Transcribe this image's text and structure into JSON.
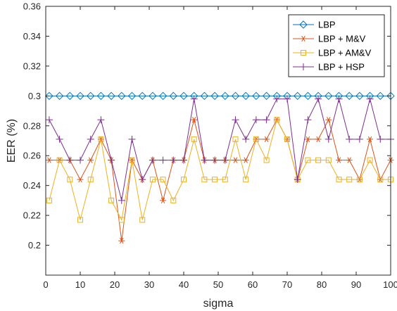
{
  "chart_data": {
    "type": "line",
    "xlabel": "sigma",
    "ylabel": "EER (%)",
    "xlim": [
      0,
      100
    ],
    "ylim": [
      0.18,
      0.36
    ],
    "xticks": [
      "0",
      "10",
      "20",
      "30",
      "40",
      "50",
      "60",
      "70",
      "80",
      "90",
      "100"
    ],
    "yticks": [
      "0.2",
      "0.22",
      "0.24",
      "0.26",
      "0.28",
      "0.3",
      "0.32",
      "0.34",
      "0.36"
    ],
    "grid": false,
    "legend_position": "top-right",
    "x": [
      1,
      4,
      7,
      10,
      13,
      16,
      19,
      22,
      25,
      28,
      31,
      34,
      37,
      40,
      43,
      46,
      49,
      52,
      55,
      58,
      61,
      64,
      67,
      70,
      73,
      76,
      79,
      82,
      85,
      88,
      91,
      94,
      97,
      100
    ],
    "series": [
      {
        "name": "LBP",
        "color": "#0072BD",
        "marker": "diamond",
        "values": [
          0.3,
          0.3,
          0.3,
          0.3,
          0.3,
          0.3,
          0.3,
          0.3,
          0.3,
          0.3,
          0.3,
          0.3,
          0.3,
          0.3,
          0.3,
          0.3,
          0.3,
          0.3,
          0.3,
          0.3,
          0.3,
          0.3,
          0.3,
          0.3,
          0.3,
          0.3,
          0.3,
          0.3,
          0.3,
          0.3,
          0.3,
          0.3,
          0.3,
          0.3
        ]
      },
      {
        "name": "LBP + M&V",
        "color": "#D95319",
        "marker": "asterisk",
        "values": [
          0.257,
          0.257,
          0.257,
          0.244,
          0.257,
          0.271,
          0.257,
          0.203,
          0.257,
          0.244,
          0.257,
          0.23,
          0.257,
          0.257,
          0.284,
          0.257,
          0.257,
          0.257,
          0.257,
          0.257,
          0.271,
          0.271,
          0.284,
          0.271,
          0.244,
          0.271,
          0.271,
          0.284,
          0.257,
          0.257,
          0.244,
          0.271,
          0.244,
          0.257
        ]
      },
      {
        "name": "LBP + AM&V",
        "color": "#EDB120",
        "marker": "square",
        "values": [
          0.23,
          0.257,
          0.244,
          0.217,
          0.244,
          0.271,
          0.23,
          0.217,
          0.257,
          0.217,
          0.244,
          0.244,
          0.23,
          0.244,
          0.271,
          0.244,
          0.244,
          0.244,
          0.271,
          0.244,
          0.271,
          0.257,
          0.284,
          0.271,
          0.244,
          0.257,
          0.257,
          0.257,
          0.244,
          0.244,
          0.244,
          0.257,
          0.244,
          0.244
        ]
      },
      {
        "name": "LBP + HSP",
        "color": "#7E2F8E",
        "marker": "plus",
        "values": [
          0.284,
          0.271,
          0.257,
          0.257,
          0.271,
          0.284,
          0.257,
          0.23,
          0.271,
          0.244,
          0.257,
          0.257,
          0.257,
          0.257,
          0.298,
          0.257,
          0.257,
          0.257,
          0.284,
          0.271,
          0.284,
          0.284,
          0.298,
          0.298,
          0.244,
          0.284,
          0.298,
          0.271,
          0.298,
          0.271,
          0.271,
          0.298,
          0.271,
          0.271
        ]
      }
    ]
  }
}
